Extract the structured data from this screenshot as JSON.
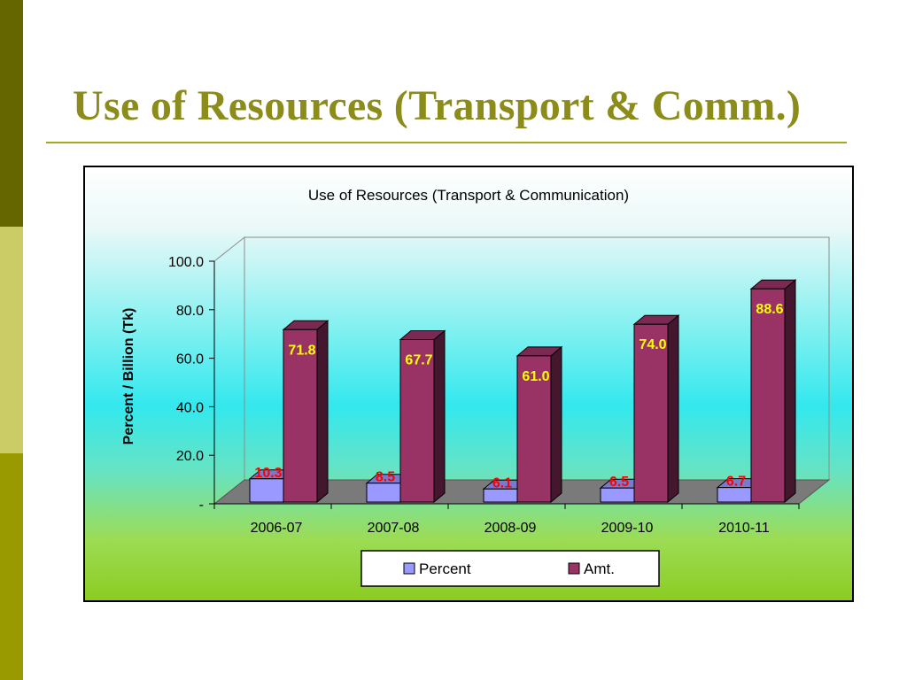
{
  "slide": {
    "title": "Use of Resources (Transport & Comm.)",
    "accent_colors": [
      "#666600",
      "#999900",
      "#cccc66",
      "#a8a820"
    ]
  },
  "chart_data": {
    "type": "bar",
    "title": "Use of Resources (Transport & Communication)",
    "xlabel": "",
    "ylabel": "Percent / Billion (Tk)",
    "categories": [
      "2006-07",
      "2007-08",
      "2008-09",
      "2009-10",
      "2010-11"
    ],
    "series": [
      {
        "name": "Percent",
        "values": [
          10.3,
          8.5,
          6.1,
          6.5,
          6.7
        ],
        "color": "#9999ff",
        "label_color": "#ff0000"
      },
      {
        "name": "Amt.",
        "values": [
          71.8,
          67.7,
          61.0,
          74.0,
          88.6
        ],
        "color": "#993366",
        "label_color": "#ffff00"
      }
    ],
    "ylim": [
      0,
      100
    ],
    "yticks": [
      0,
      20,
      40,
      60,
      80,
      100
    ],
    "ytick_labels": [
      "-",
      "20.0",
      "40.0",
      "60.0",
      "80.0",
      "100.0"
    ],
    "grid": false,
    "style": "3d",
    "legend_position": "bottom"
  }
}
